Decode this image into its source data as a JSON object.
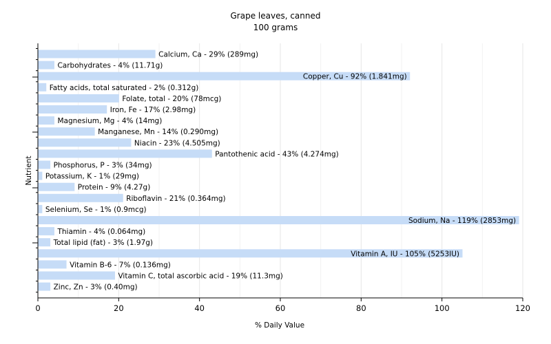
{
  "chart_data": {
    "type": "bar",
    "orientation": "horizontal",
    "title": "Grape leaves, canned",
    "subtitle": "100 grams",
    "xlabel": "% Daily Value",
    "ylabel": "Nutrient",
    "xlim": [
      0,
      120
    ],
    "xticks": [
      0,
      20,
      40,
      60,
      80,
      100,
      120
    ],
    "grid": true,
    "bar_color": "#c6dcf7",
    "categories": [
      "Calcium, Ca",
      "Carbohydrates",
      "Copper, Cu",
      "Fatty acids, total saturated",
      "Folate, total",
      "Iron, Fe",
      "Magnesium, Mg",
      "Manganese, Mn",
      "Niacin",
      "Pantothenic acid",
      "Phosphorus, P",
      "Potassium, K",
      "Protein",
      "Riboflavin",
      "Selenium, Se",
      "Sodium, Na",
      "Thiamin",
      "Total lipid (fat)",
      "Vitamin A, IU",
      "Vitamin B-6",
      "Vitamin C, total ascorbic acid",
      "Zinc, Zn"
    ],
    "values": [
      29,
      4,
      92,
      2,
      20,
      17,
      4,
      14,
      23,
      43,
      3,
      1,
      9,
      21,
      1,
      119,
      4,
      3,
      105,
      7,
      19,
      3
    ],
    "labels": [
      "Calcium, Ca - 29% (289mg)",
      "Carbohydrates - 4% (11.71g)",
      "Copper, Cu - 92% (1.841mg)",
      "Fatty acids, total saturated - 2% (0.312g)",
      "Folate, total - 20% (78mcg)",
      "Iron, Fe - 17% (2.98mg)",
      "Magnesium, Mg - 4% (14mg)",
      "Manganese, Mn - 14% (0.290mg)",
      "Niacin - 23% (4.505mg)",
      "Pantothenic acid - 43% (4.274mg)",
      "Phosphorus, P - 3% (34mg)",
      "Potassium, K - 1% (29mg)",
      "Protein - 9% (4.27g)",
      "Riboflavin - 21% (0.364mg)",
      "Selenium, Se - 1% (0.9mcg)",
      "Sodium, Na - 119% (2853mg)",
      "Thiamin - 4% (0.064mg)",
      "Total lipid (fat) - 3% (1.97g)",
      "Vitamin A, IU - 105% (5253IU)",
      "Vitamin B-6 - 7% (0.136mg)",
      "Vitamin C, total ascorbic acid - 19% (11.3mg)",
      "Zinc, Zn - 3% (0.40mg)"
    ]
  }
}
